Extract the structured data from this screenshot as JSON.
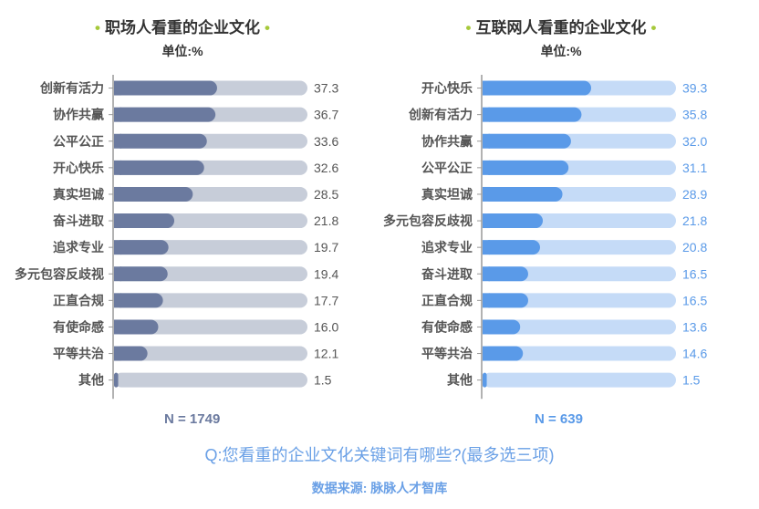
{
  "chart_data": [
    {
      "type": "bar",
      "title": "职场人看重的企业文化",
      "unit": "单位:%",
      "sample": "N = 1749",
      "categories": [
        "创新有活力",
        "协作共赢",
        "公平公正",
        "开心快乐",
        "真实坦诚",
        "奋斗进取",
        "追求专业",
        "多元包容反歧视",
        "正直合规",
        "有使命感",
        "平等共治",
        "其他"
      ],
      "values": [
        37.3,
        36.7,
        33.6,
        32.6,
        28.5,
        21.8,
        19.7,
        19.4,
        17.7,
        16.0,
        12.1,
        1.5
      ],
      "value_labels": [
        "37.3",
        "36.7",
        "33.6",
        "32.6",
        "28.5",
        "21.8",
        "19.7",
        "19.4",
        "17.7",
        "16.0",
        "12.1",
        "1.5"
      ],
      "xlim": [
        0,
        70
      ],
      "colors": {
        "bar": "#6b7a9f",
        "track": "#c7cdd9",
        "value": "#555555",
        "axis": "#999999",
        "sample": "#6b7a9f"
      }
    },
    {
      "type": "bar",
      "title": "互联网人看重的企业文化",
      "unit": "单位:%",
      "sample": "N = 639",
      "categories": [
        "开心快乐",
        "创新有活力",
        "协作共赢",
        "公平公正",
        "真实坦诚",
        "多元包容反歧视",
        "追求专业",
        "奋斗进取",
        "正直合规",
        "有使命感",
        "平等共治",
        "其他"
      ],
      "values": [
        39.3,
        35.8,
        32.0,
        31.1,
        28.9,
        21.8,
        20.8,
        16.5,
        16.5,
        13.6,
        14.6,
        1.5
      ],
      "value_labels": [
        "39.3",
        "35.8",
        "32.0",
        "31.1",
        "28.9",
        "21.8",
        "20.8",
        "16.5",
        "16.5",
        "13.6",
        "14.6",
        "1.5"
      ],
      "xlim": [
        0,
        70
      ],
      "colors": {
        "bar": "#5a9ae8",
        "track": "#c5dbf7",
        "value": "#5a9ae8",
        "axis": "#999999",
        "sample": "#5a9ae8"
      }
    }
  ],
  "footer": {
    "question": "Q:您看重的企业文化关键词有哪些?(最多选三项)",
    "source": "数据来源: 脉脉人才智库"
  },
  "accent": {
    "title_dot": "#a6c93a"
  }
}
